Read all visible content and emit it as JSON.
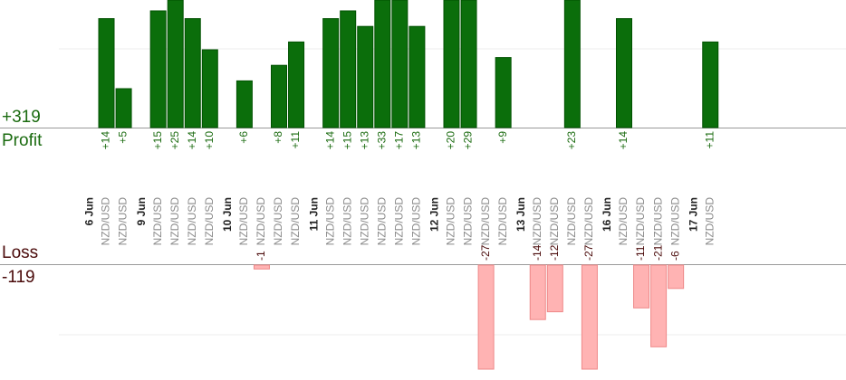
{
  "summary": {
    "profit_total": "+319",
    "profit_label": "Profit",
    "loss_label": "Loss",
    "loss_total": "-119"
  },
  "colors": {
    "profit_bar": "#0b6e0b",
    "profit_bar_edge": "#005000",
    "loss_bar": "#ffb3b3",
    "loss_bar_edge": "#ee8888",
    "profit_text": "#1b6b10",
    "loss_text": "#4a0a0a",
    "instrument_text": "#8a8a8a",
    "date_text": "#222222"
  },
  "chart_data": {
    "type": "bar",
    "title": "",
    "profit_ylim": [
      0,
      14
    ],
    "loss_ylim": [
      -15,
      0
    ],
    "days": [
      {
        "date": "6 Jun",
        "trades": [
          {
            "instrument": "NZD/USD",
            "value": 14,
            "label": "+14"
          },
          {
            "instrument": "NZD/USD",
            "value": 5,
            "label": "+5"
          }
        ]
      },
      {
        "date": "9 Jun",
        "trades": [
          {
            "instrument": "NZD/USD",
            "value": 15,
            "label": "+15"
          },
          {
            "instrument": "NZD/USD",
            "value": 25,
            "label": "+25"
          },
          {
            "instrument": "NZD/USD",
            "value": 14,
            "label": "+14"
          },
          {
            "instrument": "NZD/USD",
            "value": 10,
            "label": "+10"
          }
        ]
      },
      {
        "date": "10 Jun",
        "trades": [
          {
            "instrument": "NZD/USD",
            "value": 6,
            "label": "+6"
          },
          {
            "instrument": "NZD/USD",
            "value": -1,
            "label": "-1"
          },
          {
            "instrument": "NZD/USD",
            "value": 8,
            "label": "+8"
          },
          {
            "instrument": "NZD/USD",
            "value": 11,
            "label": "+11"
          }
        ]
      },
      {
        "date": "11 Jun",
        "trades": [
          {
            "instrument": "NZD/USD",
            "value": 14,
            "label": "+14"
          },
          {
            "instrument": "NZD/USD",
            "value": 15,
            "label": "+15"
          },
          {
            "instrument": "NZD/USD",
            "value": 13,
            "label": "+13"
          },
          {
            "instrument": "NZD/USD",
            "value": 33,
            "label": "+33"
          },
          {
            "instrument": "NZD/USD",
            "value": 17,
            "label": "+17"
          },
          {
            "instrument": "NZD/USD",
            "value": 13,
            "label": "+13"
          }
        ]
      },
      {
        "date": "12 Jun",
        "trades": [
          {
            "instrument": "NZD/USD",
            "value": 20,
            "label": "+20"
          },
          {
            "instrument": "NZD/USD",
            "value": 29,
            "label": "+29"
          },
          {
            "instrument": "NZD/USD",
            "value": -27,
            "label": "-27"
          },
          {
            "instrument": "NZD/USD",
            "value": 9,
            "label": "+9"
          }
        ]
      },
      {
        "date": "13 Jun",
        "trades": [
          {
            "instrument": "NZD/USD",
            "value": -14,
            "label": "-14"
          },
          {
            "instrument": "NZD/USD",
            "value": -12,
            "label": "-12"
          },
          {
            "instrument": "NZD/USD",
            "value": 23,
            "label": "+23"
          },
          {
            "instrument": "NZD/USD",
            "value": -27,
            "label": "-27"
          }
        ]
      },
      {
        "date": "16 Jun",
        "trades": [
          {
            "instrument": "NZD/USD",
            "value": 14,
            "label": "+14"
          },
          {
            "instrument": "NZD/USD",
            "value": -11,
            "label": "-11"
          },
          {
            "instrument": "NZD/USD",
            "value": -21,
            "label": "-21"
          },
          {
            "instrument": "NZD/USD",
            "value": -6,
            "label": "-6"
          }
        ]
      },
      {
        "date": "17 Jun",
        "trades": [
          {
            "instrument": "NZD/USD",
            "value": 11,
            "label": "+11"
          }
        ]
      }
    ]
  }
}
